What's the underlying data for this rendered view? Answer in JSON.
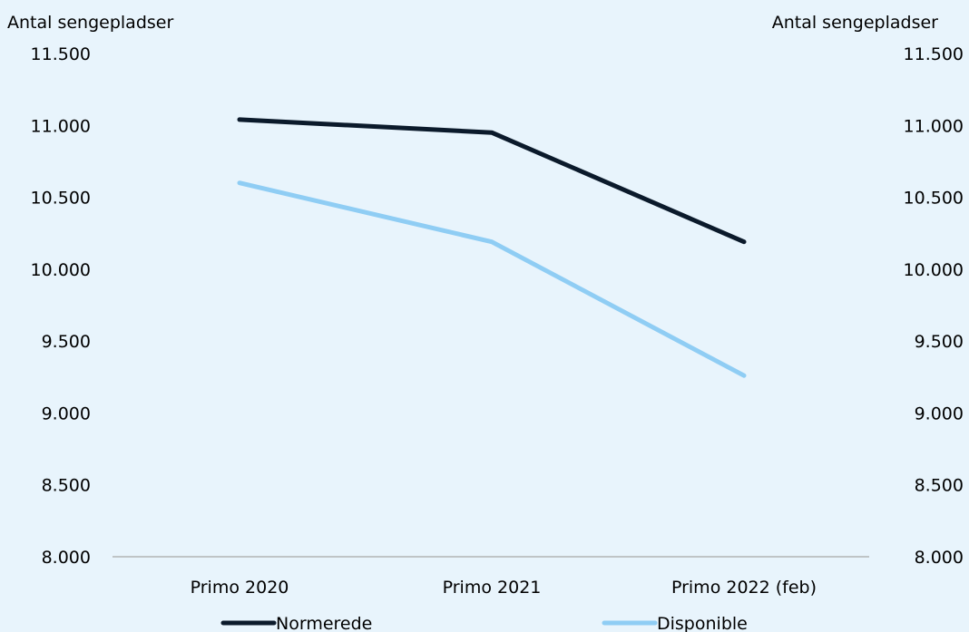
{
  "chart_data": {
    "type": "line",
    "categories": [
      "Primo 2020",
      "Primo 2021",
      "Primo 2022 (feb)"
    ],
    "series": [
      {
        "name": "Normerede",
        "values": [
          11040,
          10950,
          10190
        ],
        "color": "#0b1a2b"
      },
      {
        "name": "Disponible",
        "values": [
          10600,
          10190,
          9260
        ],
        "color": "#8fcdf4"
      }
    ],
    "ylabel_left": "Antal sengepladser",
    "ylabel_right": "Antal sengepladser",
    "ylim": [
      8000,
      11500
    ],
    "yticks": [
      8000,
      8500,
      9000,
      9500,
      10000,
      10500,
      11000,
      11500
    ],
    "ytick_labels": [
      "8.000",
      "8.500",
      "9.000",
      "9.500",
      "10.000",
      "10.500",
      "11.000",
      "11.500"
    ],
    "grid": false,
    "legend_position": "bottom",
    "background": "#e8f4fc",
    "axis_color": "#a6a6a6"
  }
}
